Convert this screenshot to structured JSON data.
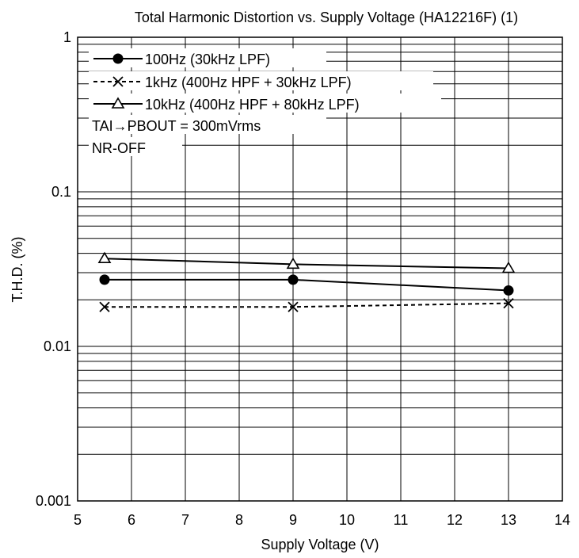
{
  "chart_data": {
    "type": "line",
    "title": "Total Harmonic Distortion vs. Supply Voltage (HA12216F) (1)",
    "xlabel": "Supply Voltage  (V)",
    "ylabel": "T.H.D.  (%)",
    "xlim": [
      5,
      14
    ],
    "ylim": [
      0.001,
      1
    ],
    "yscale": "log",
    "grid": true,
    "x_ticks": [
      "5",
      "6",
      "7",
      "8",
      "9",
      "10",
      "11",
      "12",
      "13",
      "14"
    ],
    "y_ticks": [
      "0.001",
      "0.01",
      "0.1",
      "1"
    ],
    "legend_position": "top-left",
    "series": [
      {
        "name": "100Hz (30kHz LPF)",
        "marker": "filled-circle",
        "line": "solid",
        "x": [
          5.5,
          9,
          13
        ],
        "y": [
          0.027,
          0.027,
          0.023
        ]
      },
      {
        "name": "1kHz (400Hz HPF + 30kHz LPF)",
        "marker": "x",
        "line": "dashed",
        "x": [
          5.5,
          9,
          13
        ],
        "y": [
          0.018,
          0.018,
          0.019
        ]
      },
      {
        "name": "10kHz (400Hz HPF + 80kHz LPF)",
        "marker": "open-triangle",
        "line": "solid",
        "x": [
          5.5,
          9,
          13
        ],
        "y": [
          0.037,
          0.034,
          0.032
        ]
      }
    ],
    "annotations": [
      "TAI→PBOUT = 300mVrms",
      "NR-OFF"
    ]
  }
}
